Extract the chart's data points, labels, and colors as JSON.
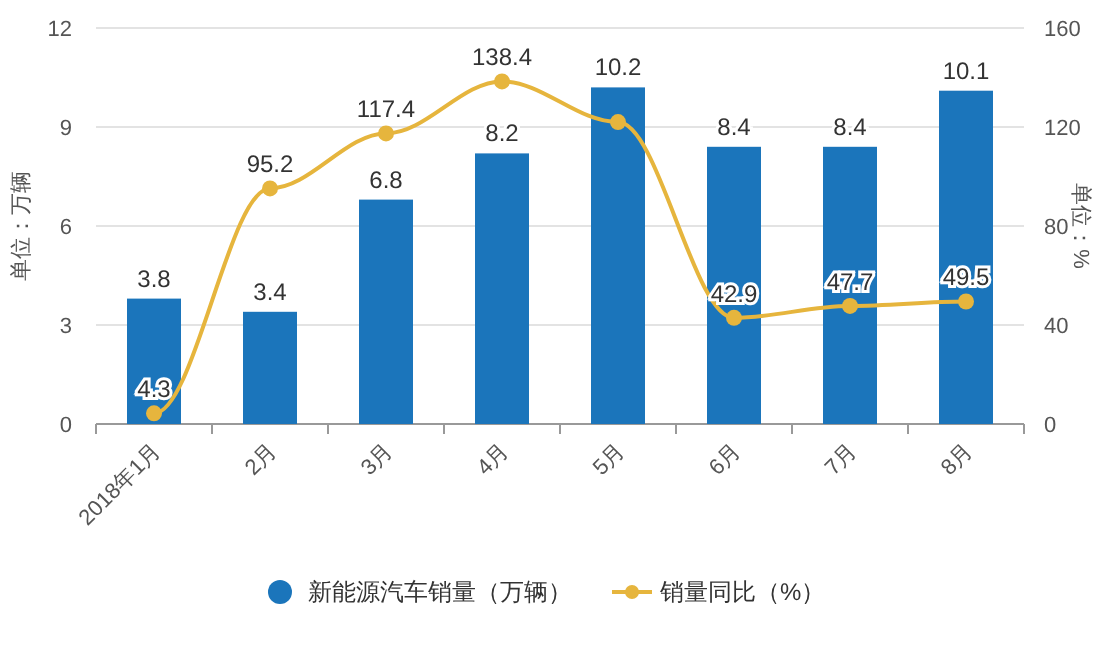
{
  "chart_data": {
    "type": "bar",
    "categories": [
      "2018年1月",
      "2月",
      "3月",
      "4月",
      "5月",
      "6月",
      "7月",
      "8月"
    ],
    "ylabel": "单位：万辆",
    "y2label": "单位：%",
    "ylim": [
      0,
      12
    ],
    "yticks": [
      0,
      3,
      6,
      9,
      12
    ],
    "y2lim": [
      0,
      160
    ],
    "y2ticks": [
      0,
      40,
      80,
      120,
      160
    ],
    "grid": "y",
    "legend": "bottom",
    "series": [
      {
        "name": "新能源汽车销量（万辆）",
        "color": "#1b75bb",
        "values": [
          3.8,
          3.4,
          6.8,
          8.2,
          10.2,
          8.4,
          8.4,
          10.1
        ],
        "value_labels": [
          "3.8",
          "3.4",
          "6.8",
          "8.2",
          "10.2",
          "8.4",
          "8.4",
          "10.1"
        ]
      },
      {
        "name": "销量同比（%）",
        "type": "line",
        "axis": "y2",
        "color": "#e6b53d",
        "marker": "circle",
        "values": [
          4.3,
          95.2,
          117.4,
          138.4,
          122,
          42.9,
          47.7,
          49.5
        ],
        "value_labels": [
          "4.3",
          "95.2",
          "117.4",
          "138.4",
          null,
          "42.9",
          "47.7",
          "49.5"
        ]
      }
    ]
  }
}
